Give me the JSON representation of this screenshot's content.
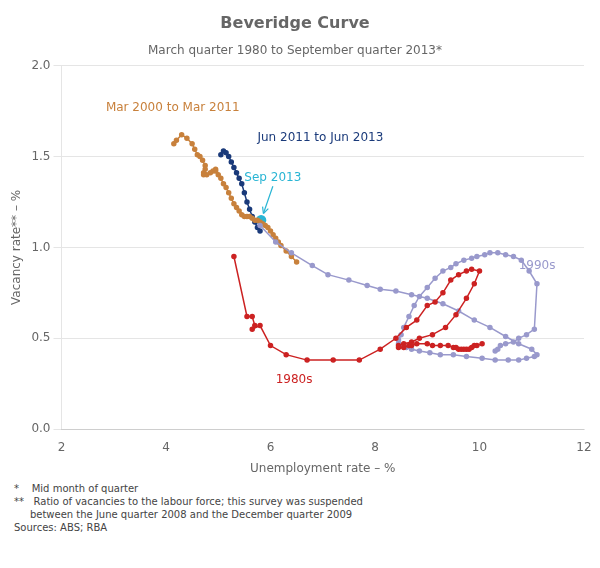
{
  "chart_data": {
    "type": "line",
    "title": "Beveridge Curve",
    "subtitle": "March quarter 1980 to September quarter 2013*",
    "x_label": "Unemployment rate – %",
    "y_label": "Vacancy rate** – %",
    "xlim": [
      2,
      12
    ],
    "ylim": [
      0.0,
      2.0
    ],
    "xticks": [
      2,
      4,
      6,
      8,
      10,
      12
    ],
    "yticks": [
      {
        "value": 0.0,
        "label": "0.0"
      },
      {
        "value": 0.5,
        "label": "0.5"
      },
      {
        "value": 1.0,
        "label": "1.0"
      },
      {
        "value": 1.5,
        "label": "1.5"
      },
      {
        "value": 2.0,
        "label": "2.0"
      }
    ],
    "grid": "y",
    "series": [
      {
        "name": "1980s",
        "color": "#cc2222",
        "line_style": "solid",
        "marker": "circle",
        "x": [
          5.3,
          5.55,
          5.65,
          5.7,
          5.65,
          5.8,
          6.0,
          6.3,
          6.7,
          7.2,
          7.7,
          8.1,
          8.4,
          8.6,
          8.8,
          9.0,
          9.15,
          9.3,
          9.45,
          9.6,
          9.75,
          9.85,
          10.0,
          9.9,
          9.75,
          9.55,
          9.35,
          9.1,
          8.85,
          8.7,
          8.55,
          8.45,
          8.45,
          8.55,
          8.65,
          8.7,
          8.8,
          9.0,
          9.1,
          9.25,
          9.4,
          9.5,
          9.55,
          9.6,
          9.65,
          9.7,
          9.75,
          9.8,
          9.85,
          9.9,
          9.95,
          10.05
        ],
        "values": [
          0.95,
          0.62,
          0.62,
          0.57,
          0.55,
          0.57,
          0.46,
          0.41,
          0.38,
          0.38,
          0.38,
          0.44,
          0.5,
          0.56,
          0.6,
          0.68,
          0.7,
          0.75,
          0.82,
          0.85,
          0.87,
          0.88,
          0.87,
          0.8,
          0.72,
          0.63,
          0.56,
          0.52,
          0.5,
          0.48,
          0.47,
          0.46,
          0.45,
          0.45,
          0.46,
          0.46,
          0.47,
          0.47,
          0.46,
          0.46,
          0.46,
          0.45,
          0.45,
          0.44,
          0.44,
          0.44,
          0.44,
          0.44,
          0.45,
          0.46,
          0.46,
          0.47
        ]
      },
      {
        "name": "1990s",
        "color": "#9999cc",
        "line_style": "solid",
        "marker": "circle",
        "x": [
          5.8,
          6.1,
          6.4,
          6.8,
          7.1,
          7.5,
          7.85,
          8.1,
          8.4,
          8.7,
          9.0,
          9.3,
          9.6,
          9.9,
          10.2,
          10.5,
          10.75,
          11.0,
          11.1,
          11.05,
          10.9,
          10.75,
          10.55,
          10.3,
          10.05,
          9.75,
          9.5,
          9.25,
          9.05,
          8.85,
          8.7,
          8.6,
          8.5,
          8.45,
          8.45,
          8.5,
          8.55,
          8.65,
          8.75,
          8.85,
          9.0,
          9.15,
          9.3,
          9.45,
          9.55,
          9.7,
          9.85,
          9.95,
          10.1,
          10.2,
          10.35,
          10.5,
          10.65,
          10.8,
          10.95,
          11.1,
          11.05,
          10.9,
          10.75,
          10.65,
          10.5,
          10.4,
          10.35,
          10.3
        ],
        "values": [
          1.12,
          1.03,
          0.97,
          0.9,
          0.85,
          0.82,
          0.79,
          0.77,
          0.76,
          0.74,
          0.72,
          0.69,
          0.65,
          0.6,
          0.56,
          0.51,
          0.47,
          0.44,
          0.41,
          0.4,
          0.39,
          0.38,
          0.38,
          0.38,
          0.39,
          0.4,
          0.41,
          0.41,
          0.42,
          0.43,
          0.44,
          0.45,
          0.46,
          0.47,
          0.49,
          0.52,
          0.56,
          0.62,
          0.68,
          0.73,
          0.78,
          0.83,
          0.87,
          0.89,
          0.91,
          0.93,
          0.94,
          0.95,
          0.96,
          0.97,
          0.97,
          0.96,
          0.95,
          0.93,
          0.87,
          0.8,
          0.55,
          0.52,
          0.5,
          0.48,
          0.47,
          0.46,
          0.44,
          0.43
        ]
      },
      {
        "name": "Mar 2000 to Mar 2011",
        "color": "#c8813c",
        "line_style": "solid",
        "marker": "circle",
        "x": [
          4.15,
          4.2,
          4.3,
          4.4,
          4.5,
          4.55,
          4.6,
          4.65,
          4.7,
          4.75,
          4.75,
          4.72,
          4.72,
          4.78,
          4.85,
          4.9,
          4.95,
          4.95,
          5.0,
          5.05,
          5.1,
          5.15,
          5.2,
          5.25,
          5.3,
          5.35,
          5.4,
          5.45,
          5.5,
          5.55,
          5.6,
          5.65,
          5.7,
          5.75,
          5.8,
          5.85,
          5.9,
          5.95,
          6.0,
          6.05,
          6.1,
          6.15,
          6.2,
          6.3,
          6.4,
          6.5
        ],
        "values": [
          1.57,
          1.59,
          1.62,
          1.6,
          1.57,
          1.54,
          1.51,
          1.5,
          1.48,
          1.45,
          1.43,
          1.41,
          1.4,
          1.4,
          1.41,
          1.42,
          1.43,
          1.42,
          1.4,
          1.38,
          1.35,
          1.33,
          1.3,
          1.27,
          1.24,
          1.22,
          1.2,
          1.18,
          1.17,
          1.17,
          1.17,
          1.16,
          1.15,
          1.15,
          1.14,
          1.13,
          1.12,
          1.11,
          1.09,
          1.07,
          1.05,
          1.03,
          1.01,
          0.98,
          0.95,
          0.92
        ]
      },
      {
        "name": "Jun 2011 to Jun 2013",
        "color": "#1a3a7a",
        "line_style": "solid",
        "marker": "circle",
        "x": [
          5.05,
          5.1,
          5.15,
          5.2,
          5.25,
          5.3,
          5.35,
          5.4,
          5.45,
          5.5,
          5.55,
          5.6,
          5.65,
          5.7,
          5.75,
          5.8
        ],
        "values": [
          1.51,
          1.53,
          1.52,
          1.5,
          1.47,
          1.44,
          1.41,
          1.38,
          1.35,
          1.3,
          1.25,
          1.21,
          1.17,
          1.14,
          1.11,
          1.09
        ]
      },
      {
        "name": "Sep 2013",
        "color": "#29b5d4",
        "line_style": "none",
        "marker": "circle",
        "x": [
          5.82
        ],
        "values": [
          1.15
        ]
      }
    ],
    "annotations": [
      {
        "text": "Mar 2000 to Mar 2011",
        "x": 2.85,
        "y": 1.77
      },
      {
        "text": "Jun 2011 to Jun 2013",
        "x": 5.75,
        "y": 1.6
      },
      {
        "text": "Sep 2013",
        "x": 5.5,
        "y": 1.38
      },
      {
        "text": "1980s",
        "x": 6.1,
        "y": 0.27
      },
      {
        "text": "1990s",
        "x": 10.75,
        "y": 0.9
      }
    ],
    "footnotes": [
      "*    Mid month of quarter",
      "**   Ratio of vacancies to the labour force; this survey was suspended\n     between the June quarter 2008 and the December quarter 2009",
      "Sources: ABS; RBA"
    ]
  }
}
